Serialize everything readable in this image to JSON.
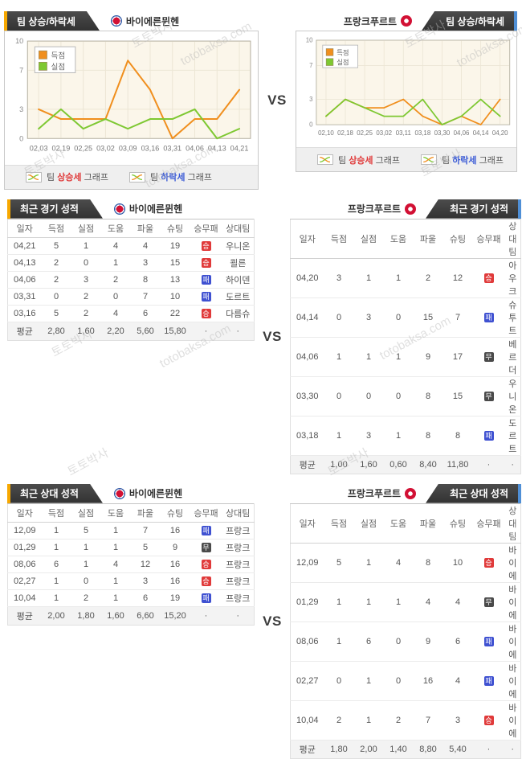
{
  "vs": "VS",
  "titles": {
    "trend": "팀 상승/하락세",
    "recent": "최근 경기 성적",
    "h2h": "최근 상대 성적"
  },
  "teams": {
    "home": {
      "name": "바이에른뮌헨"
    },
    "away": {
      "name": "프랑크푸르트"
    }
  },
  "legend_items": [
    {
      "pre": "팀 ",
      "word": "상승세",
      "post": " 그래프"
    },
    {
      "pre": "팀 ",
      "word": "하락세",
      "post": " 그래프"
    }
  ],
  "watermarks": {
    "name": "토토박사",
    "site": "totobaksa.com"
  },
  "colors": {
    "accent_orange": "#f7a800",
    "accent_blue": "#4f8fd6",
    "win": "#e03a3a",
    "draw": "#4a4a4a",
    "loss": "#3f51d1",
    "score_line": "#f08f1e",
    "concede_line": "#7ec832"
  },
  "badge_results": {
    "승": "win",
    "무": "draw",
    "패": "loss"
  },
  "chart_data": [
    {
      "type": "line",
      "team": "바이에른뮌헨",
      "x": [
        "02,03",
        "02,19",
        "02,25",
        "03,02",
        "03,09",
        "03,16",
        "03,31",
        "04,06",
        "04,13",
        "04,21"
      ],
      "series": [
        {
          "name": "득점",
          "color": "#f08f1e",
          "values": [
            3,
            2,
            2,
            2,
            8,
            5,
            0,
            2,
            2,
            5
          ]
        },
        {
          "name": "실점",
          "color": "#7ec832",
          "values": [
            1,
            3,
            1,
            2,
            1,
            2,
            2,
            3,
            0,
            1
          ]
        }
      ],
      "ylim": [
        0,
        10
      ],
      "yticks": [
        0,
        3,
        7,
        10
      ],
      "legend_position": "top-left",
      "grid": true
    },
    {
      "type": "line",
      "team": "프랑크푸르트",
      "x": [
        "02,10",
        "02,18",
        "02,25",
        "03,02",
        "03,11",
        "03,18",
        "03,30",
        "04,06",
        "04,14",
        "04,20"
      ],
      "series": [
        {
          "name": "득점",
          "color": "#f08f1e",
          "values": [
            1,
            3,
            2,
            2,
            3,
            1,
            0,
            1,
            0,
            3
          ]
        },
        {
          "name": "실점",
          "color": "#7ec832",
          "values": [
            1,
            3,
            2,
            1,
            1,
            3,
            0,
            1,
            3,
            1
          ]
        }
      ],
      "ylim": [
        0,
        10
      ],
      "yticks": [
        0,
        3,
        7,
        10
      ],
      "legend_position": "top-left",
      "grid": true
    }
  ],
  "tables": {
    "columns": [
      "일자",
      "득점",
      "실점",
      "도움",
      "파울",
      "슈팅",
      "승무패",
      "상대팀"
    ],
    "recent_home": {
      "rows": [
        [
          "04,21",
          "5",
          "1",
          "4",
          "4",
          "19",
          "승",
          "우니온"
        ],
        [
          "04,13",
          "2",
          "0",
          "1",
          "3",
          "15",
          "승",
          "쾰른"
        ],
        [
          "04,06",
          "2",
          "3",
          "2",
          "8",
          "13",
          "패",
          "하이덴"
        ],
        [
          "03,31",
          "0",
          "2",
          "0",
          "7",
          "10",
          "패",
          "도르트"
        ],
        [
          "03,16",
          "5",
          "2",
          "4",
          "6",
          "22",
          "승",
          "다름슈"
        ]
      ],
      "avg": [
        "평균",
        "2,80",
        "1,60",
        "2,20",
        "5,60",
        "15,80",
        "·",
        "·"
      ]
    },
    "recent_away": {
      "rows": [
        [
          "04,20",
          "3",
          "1",
          "1",
          "2",
          "12",
          "승",
          "아우크"
        ],
        [
          "04,14",
          "0",
          "3",
          "0",
          "15",
          "7",
          "패",
          "슈투트"
        ],
        [
          "04,06",
          "1",
          "1",
          "1",
          "9",
          "17",
          "무",
          "베르더"
        ],
        [
          "03,30",
          "0",
          "0",
          "0",
          "8",
          "15",
          "무",
          "우니온"
        ],
        [
          "03,18",
          "1",
          "3",
          "1",
          "8",
          "8",
          "패",
          "도르트"
        ]
      ],
      "avg": [
        "평균",
        "1,00",
        "1,60",
        "0,60",
        "8,40",
        "11,80",
        "·",
        "·"
      ]
    },
    "h2h_home": {
      "rows": [
        [
          "12,09",
          "1",
          "5",
          "1",
          "7",
          "16",
          "패",
          "프랑크"
        ],
        [
          "01,29",
          "1",
          "1",
          "1",
          "5",
          "9",
          "무",
          "프랑크"
        ],
        [
          "08,06",
          "6",
          "1",
          "4",
          "12",
          "16",
          "승",
          "프랑크"
        ],
        [
          "02,27",
          "1",
          "0",
          "1",
          "3",
          "16",
          "승",
          "프랑크"
        ],
        [
          "10,04",
          "1",
          "2",
          "1",
          "6",
          "19",
          "패",
          "프랑크"
        ]
      ],
      "avg": [
        "평균",
        "2,00",
        "1,80",
        "1,60",
        "6,60",
        "15,20",
        "·",
        "·"
      ]
    },
    "h2h_away": {
      "rows": [
        [
          "12,09",
          "5",
          "1",
          "4",
          "8",
          "10",
          "승",
          "바이에"
        ],
        [
          "01,29",
          "1",
          "1",
          "1",
          "4",
          "4",
          "무",
          "바이에"
        ],
        [
          "08,06",
          "1",
          "6",
          "0",
          "9",
          "6",
          "패",
          "바이에"
        ],
        [
          "02,27",
          "0",
          "1",
          "0",
          "16",
          "4",
          "패",
          "바이에"
        ],
        [
          "10,04",
          "2",
          "1",
          "2",
          "7",
          "3",
          "승",
          "바이에"
        ]
      ],
      "avg": [
        "평균",
        "1,80",
        "2,00",
        "1,40",
        "8,80",
        "5,40",
        "·",
        "·"
      ]
    }
  }
}
